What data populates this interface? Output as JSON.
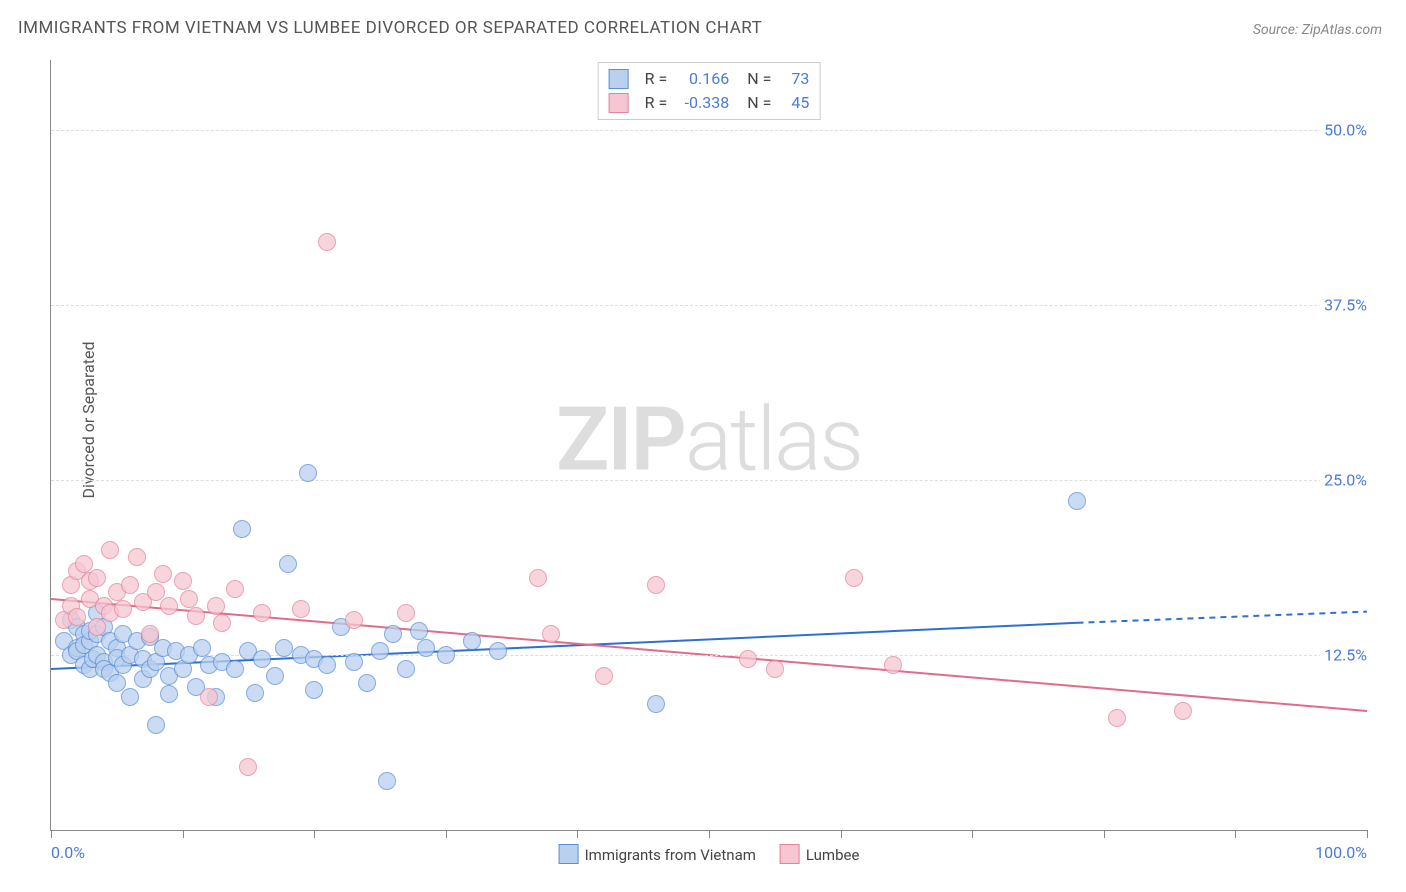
{
  "title": "IMMIGRANTS FROM VIETNAM VS LUMBEE DIVORCED OR SEPARATED CORRELATION CHART",
  "source": "Source: ZipAtlas.com",
  "watermark_a": "ZIP",
  "watermark_b": "atlas",
  "chart": {
    "type": "scatter",
    "ylabel": "Divorced or Separated",
    "xlim": [
      0,
      100
    ],
    "ylim": [
      0,
      55
    ],
    "x_ticks": [
      0,
      10,
      20,
      30,
      40,
      50,
      60,
      70,
      80,
      90,
      100
    ],
    "x_labels": [
      {
        "v": 0,
        "t": "0.0%"
      },
      {
        "v": 100,
        "t": "100.0%"
      }
    ],
    "y_lines": [
      {
        "v": 12.5,
        "t": "12.5%"
      },
      {
        "v": 25.0,
        "t": "25.0%"
      },
      {
        "v": 37.5,
        "t": "37.5%"
      },
      {
        "v": 50.0,
        "t": "50.0%"
      }
    ],
    "marker_radius": 8,
    "marker_border_width": 1,
    "background_color": "#ffffff",
    "grid_color": "#dddddd",
    "axis_color": "#888888",
    "series": [
      {
        "key": "vietnam",
        "label": "Immigrants from Vietnam",
        "fill": "#b9d0ef",
        "stroke": "#5b8fd6",
        "fill_opacity": 0.75,
        "r_label": "R =",
        "n_label": "N =",
        "r": "0.166",
        "n": "73",
        "trend": {
          "y_at_0": 11.5,
          "y_at_max_x": 14.8,
          "max_x": 78,
          "extend_dashed_to": 100,
          "y_at_100": 15.6,
          "stroke": "#2e6fd0",
          "width": 2
        },
        "points": [
          [
            1,
            13.5
          ],
          [
            1.5,
            12.5
          ],
          [
            1.5,
            15
          ],
          [
            2,
            14.5
          ],
          [
            2,
            13
          ],
          [
            2,
            12.8
          ],
          [
            2.5,
            14
          ],
          [
            2.5,
            13.2
          ],
          [
            2.5,
            11.8
          ],
          [
            3,
            13.5
          ],
          [
            3,
            14.2
          ],
          [
            3,
            11.5
          ],
          [
            3.2,
            12.2
          ],
          [
            3.5,
            14
          ],
          [
            3.5,
            12.5
          ],
          [
            3.5,
            15.5
          ],
          [
            4,
            12
          ],
          [
            4,
            14.5
          ],
          [
            4,
            11.5
          ],
          [
            4.5,
            13.5
          ],
          [
            4.5,
            11.2
          ],
          [
            5,
            13
          ],
          [
            5,
            10.5
          ],
          [
            5,
            12.3
          ],
          [
            5.5,
            11.8
          ],
          [
            5.5,
            14
          ],
          [
            6,
            12.5
          ],
          [
            6,
            9.5
          ],
          [
            6.5,
            13.5
          ],
          [
            7,
            12.2
          ],
          [
            7,
            10.8
          ],
          [
            7.5,
            11.5
          ],
          [
            7.5,
            13.8
          ],
          [
            8,
            12
          ],
          [
            8,
            7.5
          ],
          [
            8.5,
            13
          ],
          [
            9,
            11
          ],
          [
            9,
            9.7
          ],
          [
            9.5,
            12.8
          ],
          [
            10,
            11.5
          ],
          [
            10.5,
            12.5
          ],
          [
            11,
            10.2
          ],
          [
            11.5,
            13
          ],
          [
            12,
            11.8
          ],
          [
            12.5,
            9.5
          ],
          [
            13,
            12
          ],
          [
            14,
            11.5
          ],
          [
            14.5,
            21.5
          ],
          [
            15,
            12.8
          ],
          [
            15.5,
            9.8
          ],
          [
            16,
            12.2
          ],
          [
            17,
            11
          ],
          [
            17.7,
            13
          ],
          [
            18,
            19
          ],
          [
            19,
            12.5
          ],
          [
            19.5,
            25.5
          ],
          [
            20,
            12.2
          ],
          [
            20,
            10
          ],
          [
            21,
            11.8
          ],
          [
            22,
            14.5
          ],
          [
            23,
            12
          ],
          [
            24,
            10.5
          ],
          [
            25,
            12.8
          ],
          [
            25.5,
            3.5
          ],
          [
            26,
            14
          ],
          [
            27,
            11.5
          ],
          [
            28,
            14.2
          ],
          [
            28.5,
            13
          ],
          [
            30,
            12.5
          ],
          [
            32,
            13.5
          ],
          [
            34,
            12.8
          ],
          [
            46,
            9
          ],
          [
            78,
            23.5
          ]
        ]
      },
      {
        "key": "lumbee",
        "label": "Lumbee",
        "fill": "#f6c6d2",
        "stroke": "#e4849c",
        "fill_opacity": 0.75,
        "r_label": "R =",
        "n_label": "N =",
        "r": "-0.338",
        "n": "45",
        "trend": {
          "y_at_0": 16.5,
          "y_at_max_x": 8.5,
          "max_x": 100,
          "stroke": "#e06b8a",
          "width": 2
        },
        "points": [
          [
            1,
            15
          ],
          [
            1.5,
            17.5
          ],
          [
            1.5,
            16
          ],
          [
            2,
            15.2
          ],
          [
            2,
            18.5
          ],
          [
            2.5,
            19
          ],
          [
            3,
            16.5
          ],
          [
            3,
            17.8
          ],
          [
            3.5,
            14.5
          ],
          [
            3.5,
            18
          ],
          [
            4,
            16
          ],
          [
            4.5,
            15.5
          ],
          [
            4.5,
            20
          ],
          [
            5,
            17
          ],
          [
            5.5,
            15.8
          ],
          [
            6,
            17.5
          ],
          [
            6.5,
            19.5
          ],
          [
            7,
            16.3
          ],
          [
            7.5,
            14
          ],
          [
            8,
            17
          ],
          [
            8.5,
            18.3
          ],
          [
            9,
            16
          ],
          [
            10,
            17.8
          ],
          [
            10.5,
            16.5
          ],
          [
            11,
            15.3
          ],
          [
            12,
            9.5
          ],
          [
            12.5,
            16
          ],
          [
            13,
            14.8
          ],
          [
            14,
            17.2
          ],
          [
            15,
            4.5
          ],
          [
            16,
            15.5
          ],
          [
            19,
            15.8
          ],
          [
            21,
            42
          ],
          [
            23,
            15
          ],
          [
            27,
            15.5
          ],
          [
            37,
            18
          ],
          [
            38,
            14
          ],
          [
            42,
            11
          ],
          [
            46,
            17.5
          ],
          [
            53,
            12.2
          ],
          [
            55,
            11.5
          ],
          [
            61,
            18
          ],
          [
            64,
            11.8
          ],
          [
            81,
            8
          ],
          [
            86,
            8.5
          ]
        ]
      }
    ]
  }
}
